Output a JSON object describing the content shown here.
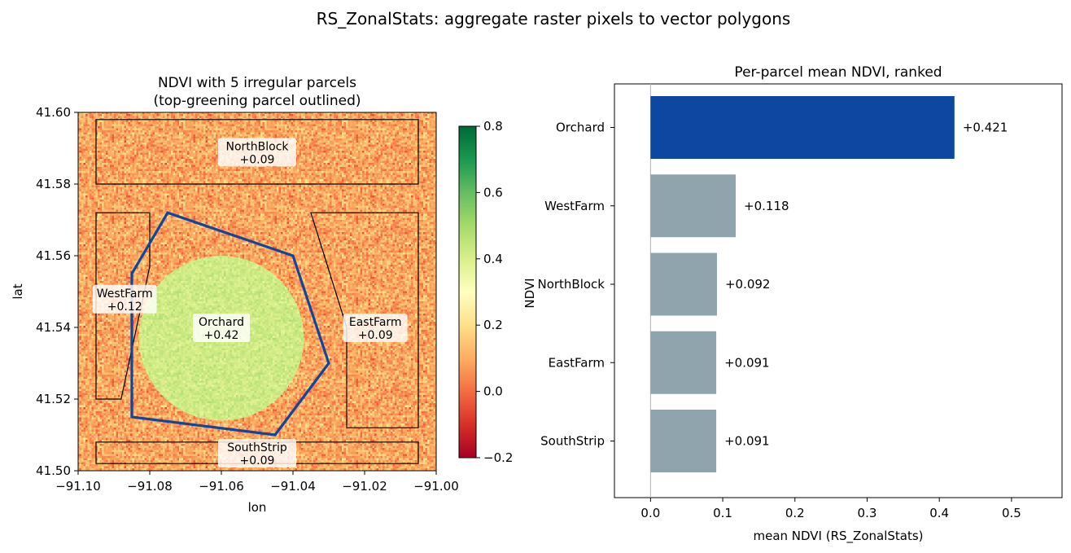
{
  "figure": {
    "title": "RS_ZonalStats: aggregate raster pixels to vector polygons"
  },
  "colors": {
    "highlight": "#0d47a1",
    "bar": "#90a4ae",
    "outline": "#000000"
  },
  "chart_data": [
    {
      "type": "heatmap",
      "title_lines": [
        "NDVI with 5 irregular parcels",
        "(top-greening parcel outlined)"
      ],
      "xlabel": "lon",
      "ylabel": "lat",
      "xlim": [
        -91.1,
        -91.0
      ],
      "ylim": [
        41.5,
        41.6
      ],
      "x_ticks": [
        "−91.10",
        "−91.08",
        "−91.06",
        "−91.04",
        "−91.02",
        "−91.00"
      ],
      "y_ticks": [
        "41.50",
        "41.52",
        "41.54",
        "41.56",
        "41.58",
        "41.60"
      ],
      "x_tick_values": [
        -91.1,
        -91.08,
        -91.06,
        -91.04,
        -91.02,
        -91.0
      ],
      "y_tick_values": [
        41.5,
        41.52,
        41.54,
        41.56,
        41.58,
        41.6
      ],
      "colorbar": {
        "range": [
          -0.2,
          0.8
        ],
        "colormap": "RdYlGn",
        "ticks": [
          "−0.2",
          "0.0",
          "0.2",
          "0.4",
          "0.6",
          "0.8"
        ],
        "tick_values": [
          -0.2,
          0.0,
          0.2,
          0.4,
          0.6,
          0.8
        ]
      },
      "background_ndvi": 0.09,
      "hotspot": {
        "center": [
          -91.06,
          41.537
        ],
        "radius": 0.023,
        "ndvi": 0.42
      },
      "parcels": [
        {
          "name": "NorthBlock",
          "label": "+0.09",
          "label_at": [
            -91.05,
            41.589
          ],
          "highlight": false,
          "polygon": [
            [
              -91.095,
              41.58
            ],
            [
              -91.005,
              41.58
            ],
            [
              -91.005,
              41.598
            ],
            [
              -91.095,
              41.598
            ]
          ]
        },
        {
          "name": "WestFarm",
          "label": "+0.12",
          "label_at": [
            -91.087,
            41.548
          ],
          "highlight": false,
          "polygon": [
            [
              -91.095,
              41.52
            ],
            [
              -91.088,
              41.52
            ],
            [
              -91.08,
              41.557
            ],
            [
              -91.08,
              41.572
            ],
            [
              -91.095,
              41.572
            ]
          ]
        },
        {
          "name": "Orchard",
          "label": "+0.42",
          "label_at": [
            -91.06,
            41.54
          ],
          "highlight": true,
          "polygon": [
            [
              -91.085,
              41.555
            ],
            [
              -91.075,
              41.572
            ],
            [
              -91.04,
              41.56
            ],
            [
              -91.03,
              41.53
            ],
            [
              -91.045,
              41.51
            ],
            [
              -91.085,
              41.515
            ]
          ]
        },
        {
          "name": "EastFarm",
          "label": "+0.09",
          "label_at": [
            -91.017,
            41.54
          ],
          "highlight": false,
          "polygon": [
            [
              -91.035,
              41.572
            ],
            [
              -91.005,
              41.572
            ],
            [
              -91.005,
              41.512
            ],
            [
              -91.025,
              41.512
            ],
            [
              -91.025,
              41.54
            ]
          ]
        },
        {
          "name": "SouthStrip",
          "label": "+0.09",
          "label_at": [
            -91.05,
            41.505
          ],
          "highlight": false,
          "polygon": [
            [
              -91.095,
              41.502
            ],
            [
              -91.005,
              41.502
            ],
            [
              -91.005,
              41.508
            ],
            [
              -91.095,
              41.508
            ]
          ]
        }
      ]
    },
    {
      "type": "bar",
      "orientation": "horizontal",
      "title": "Per-parcel mean NDVI, ranked",
      "xlabel": "mean NDVI (RS_ZonalStats)",
      "ylabel": "NDVI",
      "categories": [
        "Orchard",
        "WestFarm",
        "NorthBlock",
        "EastFarm",
        "SouthStrip"
      ],
      "values": [
        0.421,
        0.118,
        0.092,
        0.091,
        0.091
      ],
      "value_labels": [
        "+0.421",
        "+0.118",
        "+0.092",
        "+0.091",
        "+0.091"
      ],
      "highlight_index": 0,
      "xlim": [
        -0.05,
        0.57
      ],
      "x_ticks": [
        "0.0",
        "0.1",
        "0.2",
        "0.3",
        "0.4",
        "0.5"
      ],
      "x_tick_values": [
        0.0,
        0.1,
        0.2,
        0.3,
        0.4,
        0.5
      ]
    }
  ]
}
